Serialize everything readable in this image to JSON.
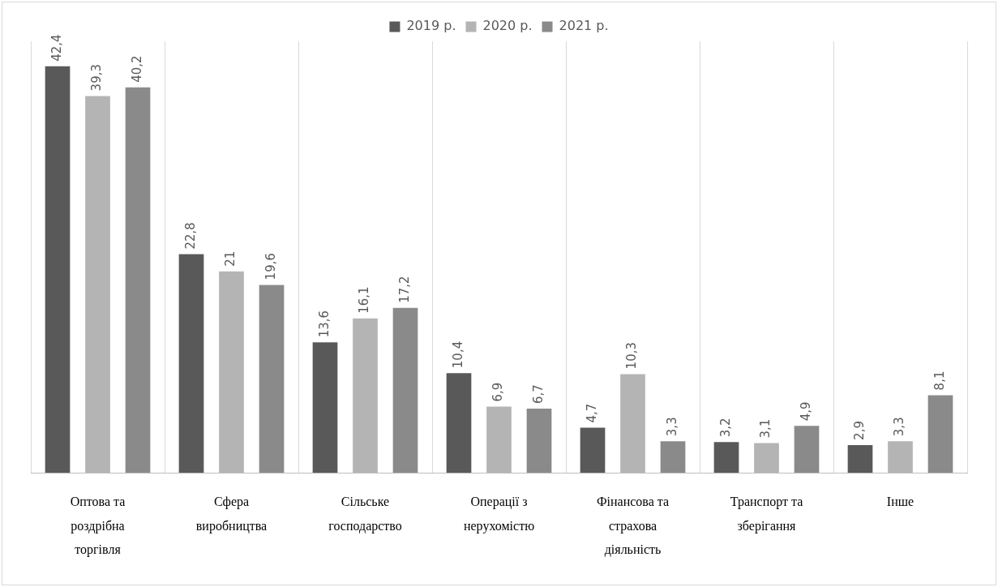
{
  "chart_data": {
    "type": "bar",
    "categories": [
      "Оптова та роздрібна торгівля",
      "Сфера виробництва",
      "Сільське господарство",
      "Операції з нерухомістю",
      "Фінансова та страхова діяльність",
      "Транспорт та зберігання",
      "Інше"
    ],
    "series": [
      {
        "name": "2019 р.",
        "color": "#595959",
        "values": [
          42.4,
          22.8,
          13.6,
          10.4,
          4.7,
          3.2,
          2.9
        ],
        "value_labels": [
          "42,4",
          "22,8",
          "13,6",
          "10,4",
          "4,7",
          "3,2",
          "2,9"
        ]
      },
      {
        "name": "2020 р.",
        "color": "#b4b4b4",
        "values": [
          39.3,
          21,
          16.1,
          6.9,
          10.3,
          3.1,
          3.3
        ],
        "value_labels": [
          "39,3",
          "21",
          "16,1",
          "6,9",
          "10,3",
          "3,1",
          "3,3"
        ]
      },
      {
        "name": "2021 р.",
        "color": "#8a8a8a",
        "values": [
          40.2,
          19.6,
          17.2,
          6.7,
          3.3,
          4.9,
          8.1
        ],
        "value_labels": [
          "40,2",
          "19,6",
          "17,2",
          "6,7",
          "3,3",
          "4,9",
          "8,1"
        ]
      }
    ],
    "grid": "x",
    "legend": "top",
    "tick_labels": "x"
  }
}
